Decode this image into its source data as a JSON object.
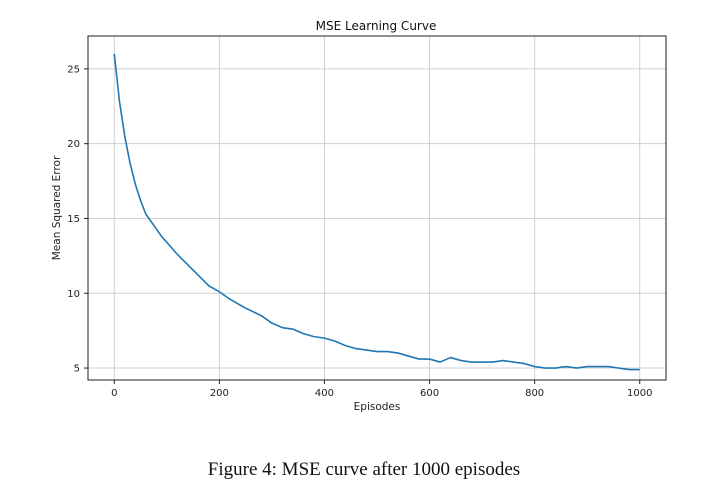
{
  "caption": "Figure 4: MSE curve after 1000 episodes",
  "chart_data": {
    "type": "line",
    "title": "MSE Learning Curve",
    "xlabel": "Episodes",
    "ylabel": "Mean Squared Error",
    "xlim": [
      -50,
      1050
    ],
    "ylim": [
      4.2,
      27.2
    ],
    "xticks": [
      0,
      200,
      400,
      600,
      800,
      1000
    ],
    "yticks": [
      5,
      10,
      15,
      20,
      25
    ],
    "grid": true,
    "line_color": "#1f77b4",
    "series": [
      {
        "x": [
          0,
          10,
          20,
          30,
          40,
          50,
          60,
          70,
          80,
          90,
          100,
          120,
          140,
          160,
          180,
          200,
          220,
          250,
          280,
          300,
          320,
          340,
          360,
          380,
          400,
          420,
          440,
          460,
          480,
          500,
          520,
          540,
          560,
          580,
          600,
          620,
          640,
          660,
          680,
          700,
          720,
          740,
          760,
          780,
          800,
          820,
          840,
          860,
          880,
          900,
          920,
          940,
          960,
          980,
          1000
        ],
        "y": [
          26.0,
          22.8,
          20.5,
          18.7,
          17.3,
          16.2,
          15.3,
          14.8,
          14.3,
          13.8,
          13.4,
          12.6,
          11.9,
          11.2,
          10.5,
          10.1,
          9.6,
          9.0,
          8.5,
          8.0,
          7.7,
          7.6,
          7.3,
          7.1,
          7.0,
          6.8,
          6.5,
          6.3,
          6.2,
          6.1,
          6.1,
          6.0,
          5.8,
          5.6,
          5.6,
          5.4,
          5.7,
          5.5,
          5.4,
          5.4,
          5.4,
          5.5,
          5.4,
          5.3,
          5.1,
          5.0,
          5.0,
          5.1,
          5.0,
          5.1,
          5.1,
          5.1,
          5.0,
          4.9,
          4.9
        ]
      }
    ]
  }
}
